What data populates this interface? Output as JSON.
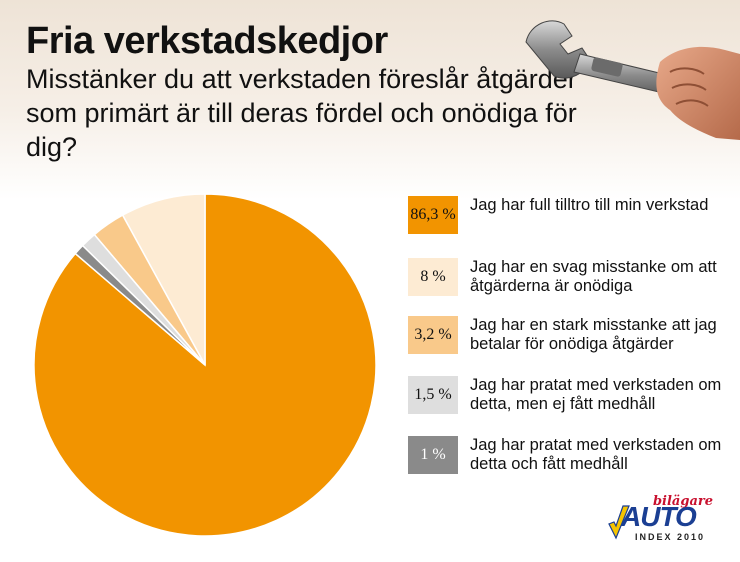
{
  "header": {
    "title": "Fria verkstadskedjor",
    "question": "Misstänker du att verkstaden föreslår åtgärder som primärt är till deras fördel och onödiga för dig?"
  },
  "chart_data": {
    "type": "pie",
    "title": "Fria verkstadskedjor",
    "subtitle": "Misstänker du att verkstaden föreslår åtgärder som primärt är till deras fördel och onödiga för dig?",
    "slices": [
      {
        "value": 86.3,
        "value_label": "86,3 %",
        "label": "Jag har full tilltro till min verkstad",
        "color": "#f29400",
        "text_color": "#111111"
      },
      {
        "value": 8,
        "value_label": "8 %",
        "label": "Jag har en svag misstanke om att åtgärderna är onödiga",
        "color": "#fdebd3",
        "text_color": "#111111"
      },
      {
        "value": 3.2,
        "value_label": "3,2 %",
        "label": "Jag har en stark misstanke att jag betalar för onödiga åtgärder",
        "color": "#f9c98a",
        "text_color": "#111111"
      },
      {
        "value": 1.5,
        "value_label": "1,5 %",
        "label": "Jag har pratat med verkstaden om detta, men ej fått medhåll",
        "color": "#dedede",
        "text_color": "#111111"
      },
      {
        "value": 1,
        "value_label": "1 %",
        "label": "Jag har pratat med verkstaden om detta och fått medhåll",
        "color": "#8a8a8a",
        "text_color": "#ffffff"
      }
    ],
    "legend_placement": "right"
  },
  "logo": {
    "small": "bilägare",
    "main": "AUTO",
    "sub": "INDEX 2010"
  }
}
